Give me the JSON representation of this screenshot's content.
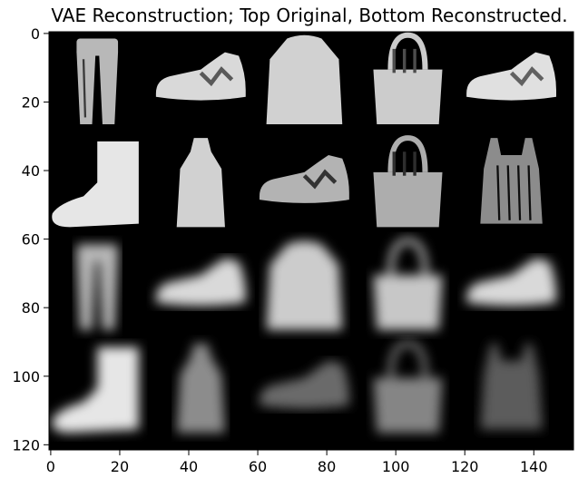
{
  "chart_data": {
    "type": "image",
    "title": "VAE Reconstruction; Top Original, Bottom Reconstructed.",
    "xlabel": "",
    "ylabel": "",
    "xlim": [
      -0.5,
      151.5
    ],
    "ylim": [
      121.5,
      -0.5
    ],
    "x_ticks": [
      0,
      20,
      40,
      60,
      80,
      100,
      120,
      140
    ],
    "y_ticks": [
      0,
      20,
      40,
      60,
      80,
      100,
      120
    ],
    "colormap": "gray",
    "background": "#000000",
    "grid": {
      "rows": 4,
      "cols": 5,
      "tile_size": 28,
      "gap": 2
    },
    "row_roles": [
      "original",
      "original",
      "reconstructed",
      "reconstructed"
    ],
    "tiles": [
      {
        "row": 0,
        "col": 0,
        "item": "trouser",
        "brightness": 0.72
      },
      {
        "row": 0,
        "col": 1,
        "item": "sneaker",
        "brightness": 0.85
      },
      {
        "row": 0,
        "col": 2,
        "item": "coat",
        "brightness": 0.82
      },
      {
        "row": 0,
        "col": 3,
        "item": "bag",
        "brightness": 0.8
      },
      {
        "row": 0,
        "col": 4,
        "item": "sneaker",
        "brightness": 0.88
      },
      {
        "row": 1,
        "col": 0,
        "item": "ankle-boot",
        "brightness": 0.9
      },
      {
        "row": 1,
        "col": 1,
        "item": "dress",
        "brightness": 0.82
      },
      {
        "row": 1,
        "col": 2,
        "item": "sneaker",
        "brightness": 0.7
      },
      {
        "row": 1,
        "col": 3,
        "item": "bag",
        "brightness": 0.68
      },
      {
        "row": 1,
        "col": 4,
        "item": "shirt",
        "brightness": 0.55
      },
      {
        "row": 2,
        "col": 0,
        "item": "trouser",
        "brightness": 0.72
      },
      {
        "row": 2,
        "col": 1,
        "item": "sneaker",
        "brightness": 0.85
      },
      {
        "row": 2,
        "col": 2,
        "item": "coat",
        "brightness": 0.8
      },
      {
        "row": 2,
        "col": 3,
        "item": "bag",
        "brightness": 0.78
      },
      {
        "row": 2,
        "col": 4,
        "item": "sneaker",
        "brightness": 0.85
      },
      {
        "row": 3,
        "col": 0,
        "item": "ankle-boot",
        "brightness": 0.9
      },
      {
        "row": 3,
        "col": 1,
        "item": "dress",
        "brightness": 0.55
      },
      {
        "row": 3,
        "col": 2,
        "item": "sneaker",
        "brightness": 0.42
      },
      {
        "row": 3,
        "col": 3,
        "item": "bag",
        "brightness": 0.52
      },
      {
        "row": 3,
        "col": 4,
        "item": "shirt",
        "brightness": 0.36
      }
    ]
  }
}
